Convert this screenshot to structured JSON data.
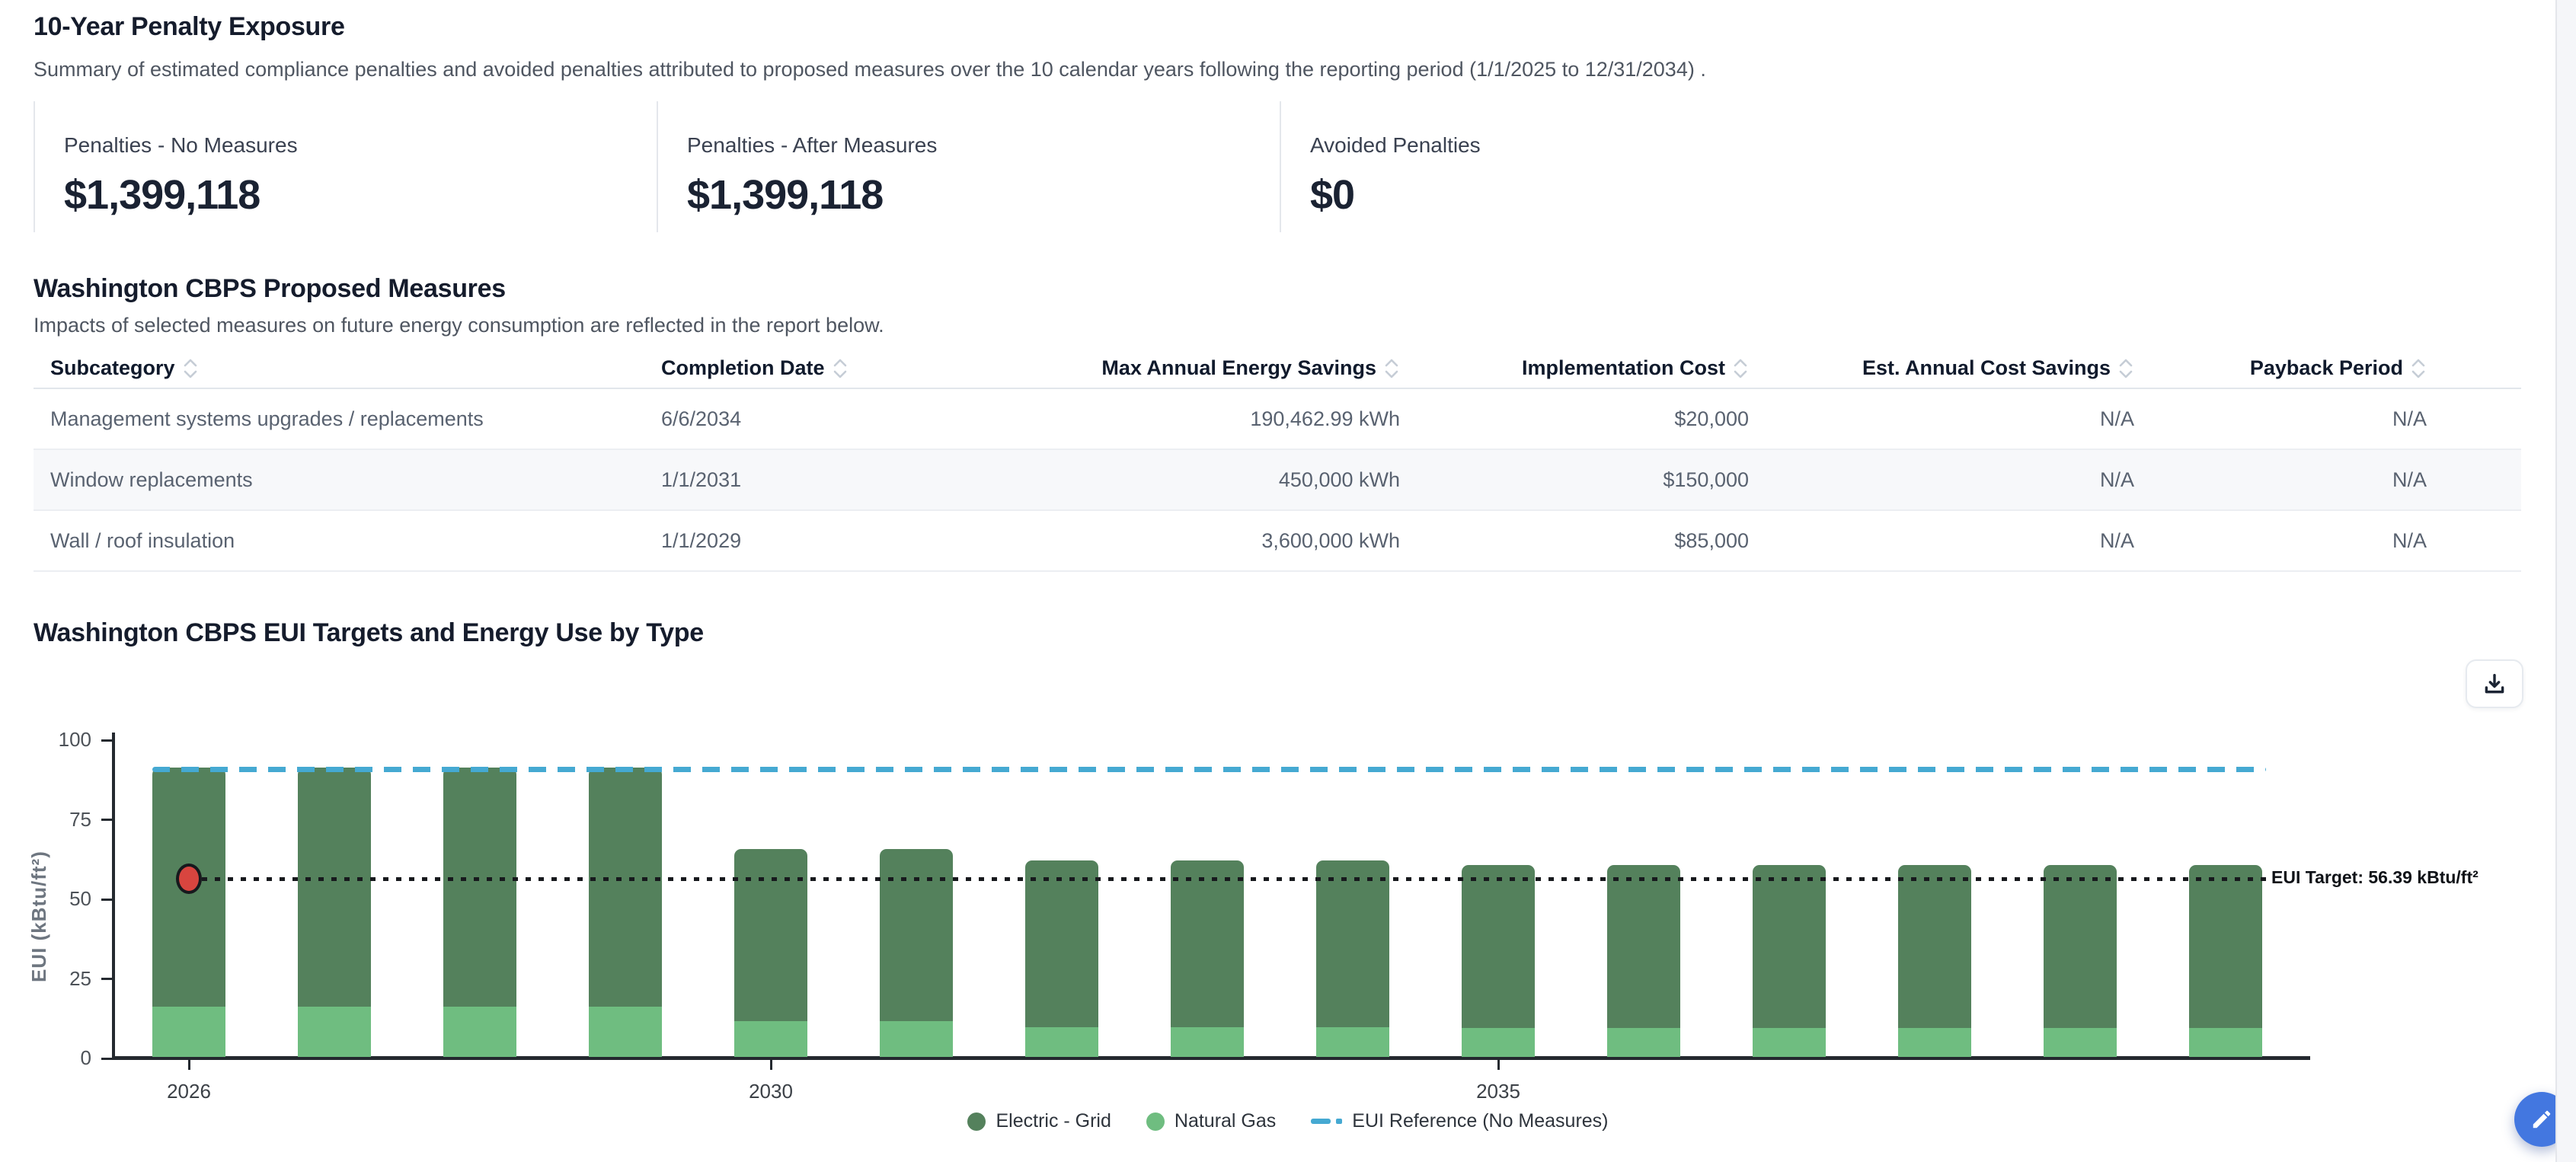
{
  "section_penalty": {
    "title": "10-Year Penalty Exposure",
    "subtitle": "Summary of estimated compliance penalties and avoided penalties attributed to proposed measures over the 10 calendar years following the reporting period (1/1/2025 to 12/31/2034) ."
  },
  "penalty_cards": [
    {
      "label": "Penalties - No Measures",
      "value": "$1,399,118"
    },
    {
      "label": "Penalties - After Measures",
      "value": "$1,399,118"
    },
    {
      "label": "Avoided Penalties",
      "value": "$0"
    }
  ],
  "section_measures": {
    "title": "Washington CBPS Proposed Measures",
    "subtitle": "Impacts of selected measures on future energy consumption are reflected in the report below."
  },
  "measures_table": {
    "columns": [
      {
        "label": "Subcategory",
        "align": "left"
      },
      {
        "label": "Completion Date",
        "align": "left"
      },
      {
        "label": "Max Annual Energy Savings",
        "align": "right"
      },
      {
        "label": "Implementation Cost",
        "align": "right"
      },
      {
        "label": "Est. Annual Cost Savings",
        "align": "right"
      },
      {
        "label": "Payback Period",
        "align": "right"
      }
    ],
    "rows": [
      [
        "Management systems upgrades / replacements",
        "6/6/2034",
        "190,462.99 kWh",
        "$20,000",
        "N/A",
        "N/A"
      ],
      [
        "Window replacements",
        "1/1/2031",
        "450,000 kWh",
        "$150,000",
        "N/A",
        "N/A"
      ],
      [
        "Wall / roof insulation",
        "1/1/2029",
        "3,600,000 kWh",
        "$85,000",
        "N/A",
        "N/A"
      ]
    ]
  },
  "section_chart": {
    "title": "Washington CBPS EUI Targets and Energy Use by Type"
  },
  "chart_data": {
    "type": "bar",
    "stacked": true,
    "x": [
      2026,
      2027,
      2028,
      2029,
      2030,
      2031,
      2032,
      2033,
      2034,
      2035,
      2036,
      2037,
      2038,
      2039,
      2040
    ],
    "series": [
      {
        "name": "Electric - Grid",
        "color": "#54815c",
        "values": [
          75.1,
          75.1,
          75.1,
          75.1,
          54,
          54,
          52.4,
          52.4,
          52.4,
          51.3,
          51.3,
          51.3,
          51.3,
          51.3,
          51.3
        ]
      },
      {
        "name": "Natural Gas",
        "color": "#6fbd80",
        "values": [
          15.9,
          15.9,
          15.9,
          15.9,
          11.3,
          11.3,
          9.4,
          9.4,
          9.4,
          9,
          9,
          9,
          9,
          9,
          9
        ]
      }
    ],
    "reference_lines": [
      {
        "name": "EUI Reference (No Measures)",
        "value": 91,
        "style": "dashed",
        "color": "#45a9d2"
      },
      {
        "name": "EUI Target",
        "value": 56.39,
        "style": "dotted",
        "color": "#17191d",
        "label": "EUI Target: 56.39 kBtu/ft²"
      }
    ],
    "point_marker": {
      "x": 2026,
      "value": 56.39,
      "color": "#d8453f"
    },
    "ylabel": "EUI (kBtu/ft²)",
    "ylim": [
      0,
      100
    ],
    "y_ticks": [
      0,
      25,
      50,
      75,
      100
    ],
    "x_ticks": [
      {
        "label": "2026",
        "index": 0
      },
      {
        "label": "2030",
        "index": 4
      },
      {
        "label": "2035",
        "index": 9
      }
    ],
    "legend": [
      "Electric - Grid",
      "Natural Gas",
      "EUI Reference (No Measures)"
    ],
    "legend_position": "bottom"
  },
  "colors": {
    "accent_blue": "#4377e0",
    "ref_cyan": "#45a9d2",
    "bar_dark_green": "#54815c",
    "bar_light_green": "#6fbd80",
    "marker_red": "#d8453f"
  }
}
